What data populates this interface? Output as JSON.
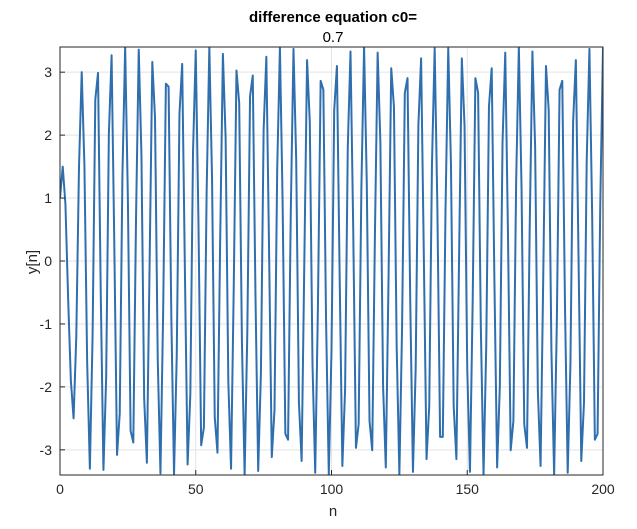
{
  "chart_data": {
    "type": "line",
    "title": "difference equation c0=",
    "subtitle": "0.7",
    "xlabel": "n",
    "ylabel": "y[n]",
    "xlim": [
      0,
      200
    ],
    "ylim": [
      -3.4,
      3.4
    ],
    "xticks": [
      0,
      50,
      100,
      150,
      200
    ],
    "yticks": [
      -3,
      -2,
      -1,
      0,
      1,
      2,
      3
    ],
    "grid": true,
    "line_color": "#2f6fae",
    "x_start": 0,
    "x_end": 200,
    "oscillation_period": 5.18,
    "amplitude": 3.4,
    "initial_points": [
      {
        "x": 0,
        "y": 1.0
      },
      {
        "x": 1,
        "y": 1.5
      },
      {
        "x": 2,
        "y": 0.9
      },
      {
        "x": 3,
        "y": -0.6
      },
      {
        "x": 4,
        "y": -1.9
      },
      {
        "x": 5,
        "y": -2.5
      },
      {
        "x": 6,
        "y": -1.2
      },
      {
        "x": 7,
        "y": 1.5
      },
      {
        "x": 8,
        "y": 3.0
      },
      {
        "x": 9,
        "y": 1.5
      },
      {
        "x": 10,
        "y": -1.6
      },
      {
        "x": 11,
        "y": -3.3
      }
    ]
  }
}
